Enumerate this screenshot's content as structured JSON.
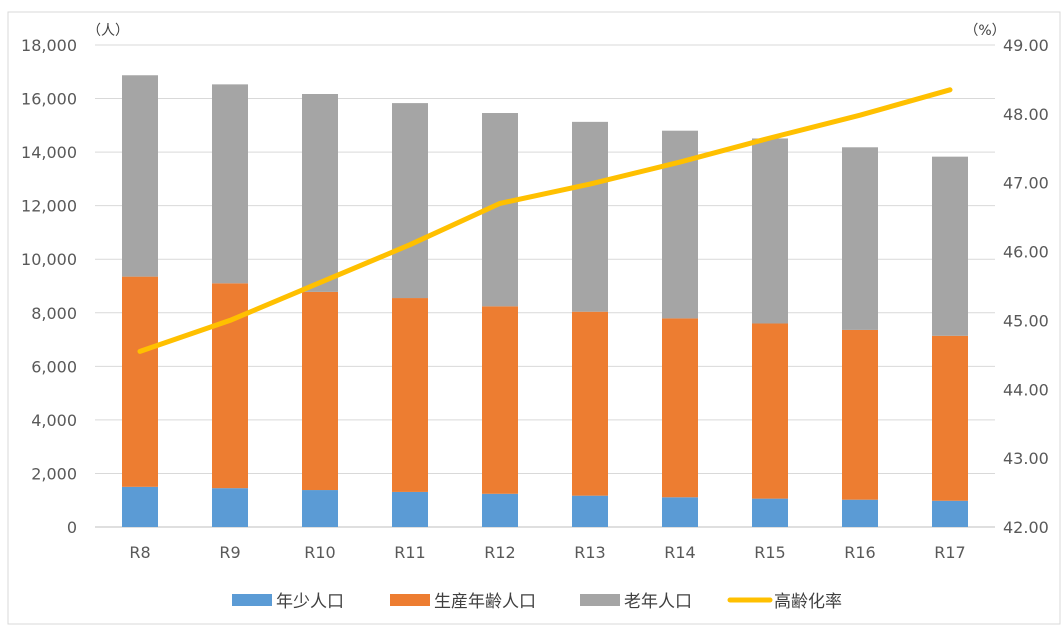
{
  "chart_data": {
    "type": "bar",
    "categories": [
      "R8",
      "R9",
      "R10",
      "R11",
      "R12",
      "R13",
      "R14",
      "R15",
      "R16",
      "R17"
    ],
    "series": [
      {
        "name": "年少人口",
        "kind": "bar",
        "axis": "left",
        "color": "#5B9BD5",
        "values": [
          1500,
          1450,
          1380,
          1310,
          1240,
          1170,
          1110,
          1060,
          1020,
          980
        ]
      },
      {
        "name": "生産年齢人口",
        "kind": "bar",
        "axis": "left",
        "color": "#ED7D31",
        "values": [
          7850,
          7650,
          7400,
          7240,
          7000,
          6870,
          6680,
          6540,
          6340,
          6160
        ]
      },
      {
        "name": "老年人口",
        "kind": "bar",
        "axis": "left",
        "color": "#A5A5A5",
        "values": [
          7520,
          7430,
          7390,
          7280,
          7220,
          7090,
          7010,
          6910,
          6820,
          6690
        ]
      },
      {
        "name": "高齢化率",
        "kind": "line",
        "axis": "right",
        "color": "#FFC000",
        "values": [
          44.55,
          45.0,
          45.55,
          46.1,
          46.7,
          46.98,
          47.3,
          47.65,
          47.98,
          48.35
        ]
      }
    ],
    "ylim_left": [
      0,
      18000
    ],
    "ylim_right": [
      42.0,
      49.0
    ],
    "yticks_left": [
      "0",
      "2,000",
      "4,000",
      "6,000",
      "8,000",
      "10,000",
      "12,000",
      "14,000",
      "16,000",
      "18,000"
    ],
    "yticks_right": [
      "42.00",
      "43.00",
      "44.00",
      "45.00",
      "46.00",
      "47.00",
      "48.00",
      "49.00"
    ],
    "ylabel_left": "（人）",
    "ylabel_right": "（%）",
    "grid": true,
    "legend_position": "bottom"
  }
}
